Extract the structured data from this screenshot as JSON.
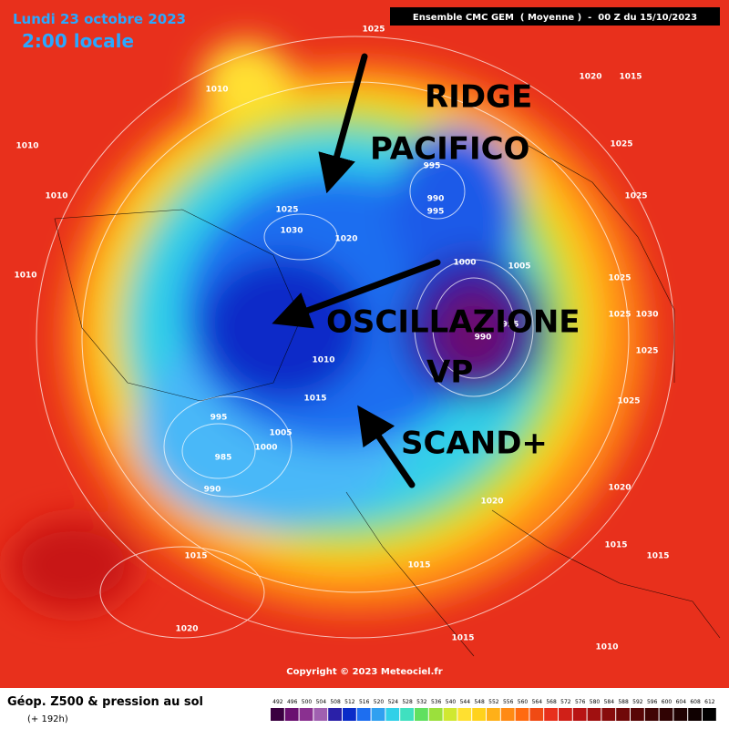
{
  "header": {
    "date": "Lundi 23 octobre 2023",
    "time": "2:00 locale",
    "model": "Ensemble CMC GEM  ( Moyenne )  -  00 Z du 15/10/2023"
  },
  "annotations": [
    "RIDGE",
    "PACIFICO",
    "OSCILLAZIONE",
    "VP",
    "SCAND+"
  ],
  "isobars": [
    "1025",
    "1010",
    "1010",
    "1010",
    "1010",
    "1020",
    "1015",
    "1025",
    "1025",
    "1025",
    "1030",
    "1025",
    "1025",
    "1025",
    "1020",
    "1015",
    "1015",
    "1010",
    "1015",
    "1015",
    "1020",
    "995",
    "990",
    "995",
    "1000",
    "1005",
    "995",
    "990",
    "1020",
    "1025",
    "1030",
    "1010",
    "1015",
    "1005",
    "1000",
    "995",
    "985",
    "990",
    "1015",
    "1020"
  ],
  "copyright": "Copyright © 2023 Meteociel.fr",
  "footer": {
    "title": "Géop. Z500 & pression au sol",
    "lead": "(+ 192h)"
  },
  "colorbar": [
    492,
    496,
    500,
    504,
    508,
    512,
    516,
    520,
    524,
    528,
    532,
    536,
    540,
    544,
    548,
    552,
    556,
    560,
    564,
    568,
    572,
    576,
    580,
    584,
    588,
    592,
    596,
    600,
    604,
    608,
    612
  ]
}
